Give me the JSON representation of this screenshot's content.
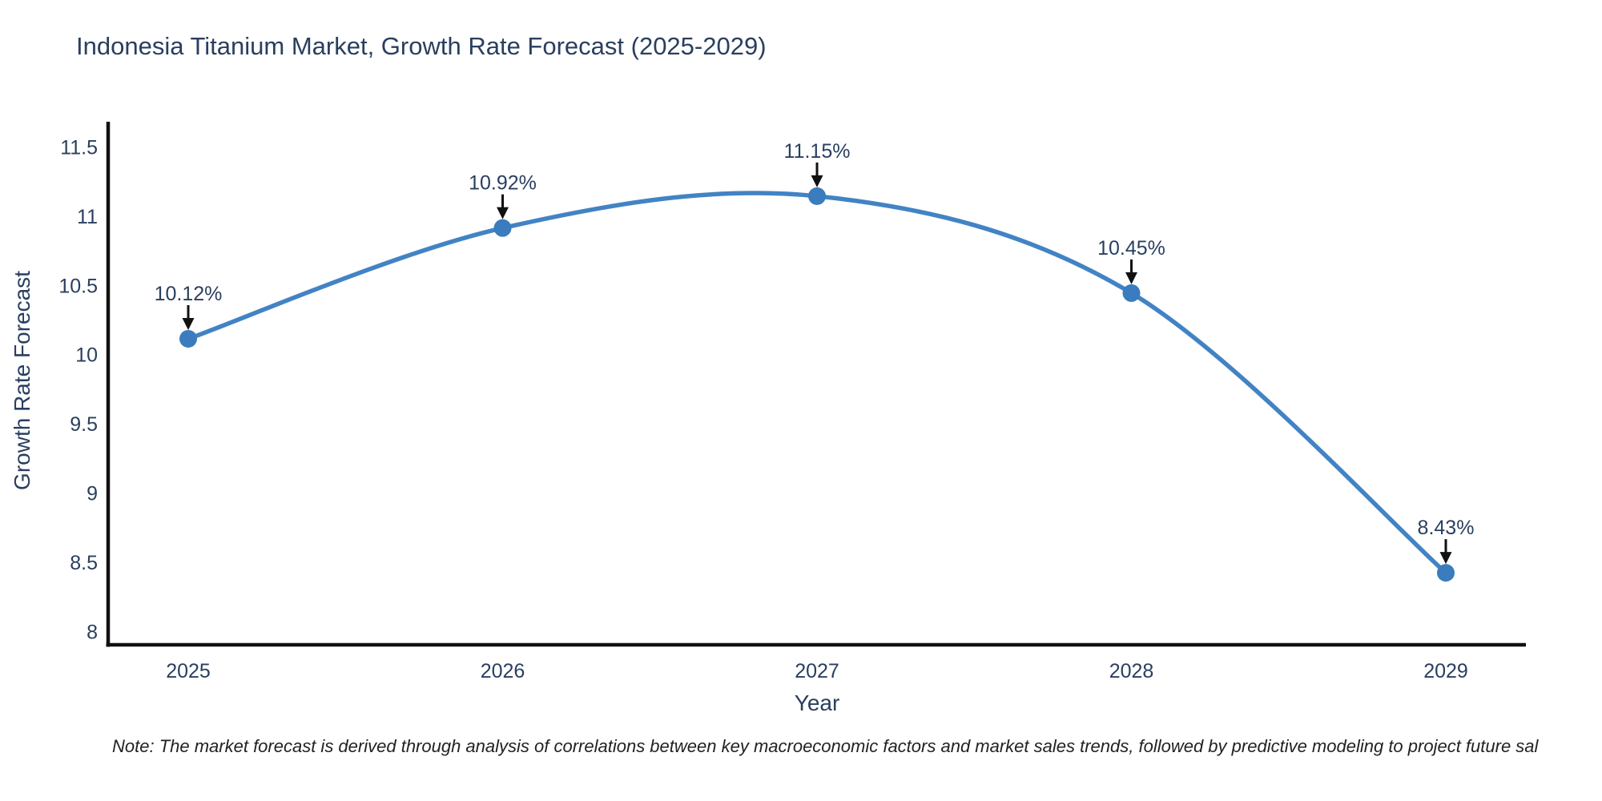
{
  "title": {
    "text": "Indonesia Titanium Market, Growth Rate Forecast (2025-2029)",
    "color": "#2a3f5f"
  },
  "note": {
    "text": "Note: The market forecast is derived through analysis of correlations between key macroeconomic factors and market sales trends, followed by predictive modeling to project future sal",
    "color": "#222222"
  },
  "chart_data": {
    "type": "line",
    "title": "Indonesia Titanium Market, Growth Rate Forecast (2025-2029)",
    "x": [
      2025,
      2026,
      2027,
      2028,
      2029
    ],
    "series": [
      {
        "name": "Growth Rate Forecast",
        "values": [
          10.12,
          10.92,
          11.15,
          10.45,
          8.43
        ],
        "point_labels": [
          "10.12%",
          "10.92%",
          "11.15%",
          "10.45%",
          "8.43%"
        ]
      }
    ],
    "xlabel": "Year",
    "ylabel": "Growth Rate Forecast",
    "xticklabels": [
      "2025",
      "2026",
      "2027",
      "2028",
      "2029"
    ],
    "yticks": [
      8,
      8.5,
      9,
      9.5,
      10,
      10.5,
      11,
      11.5
    ],
    "ylim": [
      7.91,
      11.67
    ],
    "line_shape": "spline",
    "grid": false,
    "legend": false,
    "annotations_have_arrows": true,
    "colors": {
      "line": "#4283c4",
      "marker": "#3a7cbe",
      "axis_line": "#111111",
      "tick_text": "#2a3f5f",
      "annotation_text": "#2a3f5f",
      "arrow": "#111111"
    }
  }
}
